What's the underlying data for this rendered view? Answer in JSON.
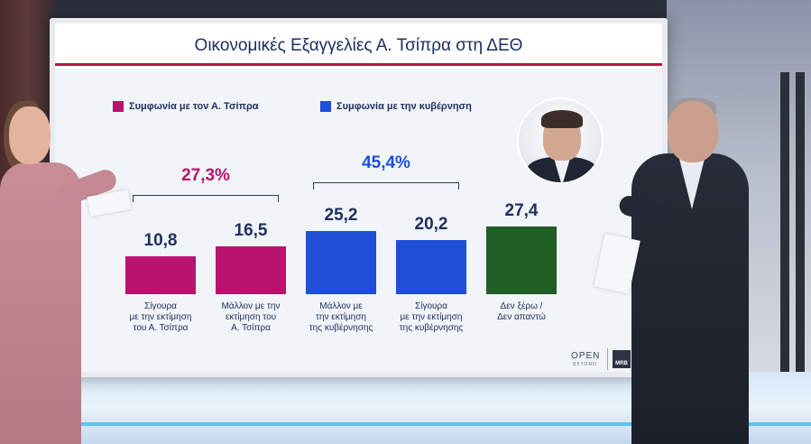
{
  "title": "Οικονομικές Εξαγγελίες Α. Τσίπρα στη ΔΕΘ",
  "colors": {
    "accent_red": "#c5133b",
    "tsipras": "#b8136e",
    "government": "#1f4fd8",
    "dont_know": "#1f5e24",
    "navy": "#1e2f62"
  },
  "legend": [
    {
      "label": "Συμφωνία με τον Α. Τσίπρα",
      "color": "#b8136e"
    },
    {
      "label": "Συμφωνία με την κυβέρνηση",
      "color": "#1f4fd8"
    }
  ],
  "chart_data": {
    "type": "bar",
    "categories": [
      "Σίγουρα\nμε την εκτίμηση\nτου Α. Τσίπρα",
      "Μάλλον με την\nεκτίμηση του\nΑ. Τσίπρα",
      "Μάλλον με\nτην εκτίμηση\nτης κυβέρνησης",
      "Σίγουρα\nμε την εκτίμηση\nτης κυβέρνησης",
      "Δεν ξέρω /\nΔεν απαντώ"
    ],
    "values": [
      10.8,
      16.5,
      25.2,
      20.2,
      27.4
    ],
    "value_labels": [
      "10,8",
      "16,5",
      "25,2",
      "20,2",
      "27,4"
    ],
    "bar_colors": [
      "#b8136e",
      "#b8136e",
      "#1f4fd8",
      "#1f4fd8",
      "#1f5e24"
    ],
    "groups": [
      {
        "total_label": "27,3%",
        "total": 27.3,
        "color": "#b8136e",
        "bars": [
          0,
          1
        ]
      },
      {
        "total_label": "45,4%",
        "total": 45.4,
        "color": "#1f4fd8",
        "bars": [
          2,
          3
        ]
      }
    ],
    "xlabel": "",
    "ylabel": "",
    "ylim": [
      0,
      30
    ]
  },
  "logos": {
    "open": "OPEN",
    "open_sub": "BEYOND",
    "mrb": "MRB"
  }
}
